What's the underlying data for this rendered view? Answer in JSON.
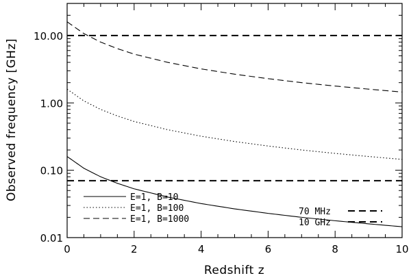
{
  "chart_data": {
    "type": "line",
    "xlabel": "Redshift z",
    "ylabel": "Observed frequency [GHz]",
    "xlim": [
      0,
      10
    ],
    "ylim": [
      0.01,
      30
    ],
    "yscale": "log",
    "grid": false,
    "legend_placement": "bottom-left",
    "x_ticks": [
      {
        "value": 0,
        "label": "0"
      },
      {
        "value": 2,
        "label": "2"
      },
      {
        "value": 4,
        "label": "4"
      },
      {
        "value": 6,
        "label": "6"
      },
      {
        "value": 8,
        "label": "8"
      },
      {
        "value": 10,
        "label": "10"
      }
    ],
    "y_ticks": [
      {
        "value": 0.01,
        "label": "0.01"
      },
      {
        "value": 0.1,
        "label": "0.10"
      },
      {
        "value": 1,
        "label": "1.00"
      },
      {
        "value": 10,
        "label": "10.00"
      }
    ],
    "series": [
      {
        "name": "E=1, B=10",
        "style": "solid",
        "color": "#000000",
        "x": [
          0,
          0.5,
          1,
          1.5,
          2,
          3,
          4,
          5,
          6,
          7,
          8,
          9,
          10
        ],
        "y": [
          0.16,
          0.107,
          0.08,
          0.064,
          0.053,
          0.04,
          0.032,
          0.0267,
          0.0229,
          0.02,
          0.0178,
          0.016,
          0.0145
        ]
      },
      {
        "name": "E=1, B=100",
        "style": "dotted",
        "color": "#000000",
        "x": [
          0,
          0.5,
          1,
          1.5,
          2,
          3,
          4,
          5,
          6,
          7,
          8,
          9,
          10
        ],
        "y": [
          1.6,
          1.07,
          0.8,
          0.64,
          0.53,
          0.4,
          0.32,
          0.267,
          0.229,
          0.2,
          0.178,
          0.16,
          0.145
        ]
      },
      {
        "name": "E=1, B=1000",
        "style": "dashed",
        "color": "#000000",
        "x": [
          0,
          0.5,
          1,
          1.5,
          2,
          3,
          4,
          5,
          6,
          7,
          8,
          9,
          10
        ],
        "y": [
          16,
          10.7,
          8,
          6.4,
          5.3,
          4,
          3.2,
          2.67,
          2.29,
          2,
          1.78,
          1.6,
          1.45
        ]
      }
    ],
    "reference_lines": [
      {
        "name": "70 MHz",
        "y": 0.07
      },
      {
        "name": "10 GHz",
        "y": 10
      }
    ]
  }
}
